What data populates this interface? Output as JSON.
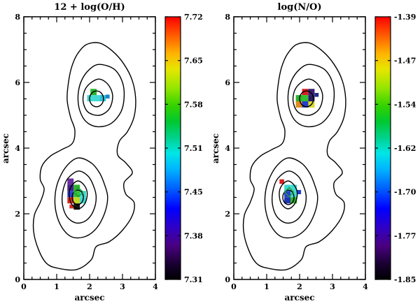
{
  "chart_data": {
    "type": "heatmap",
    "description": "Two-panel spaxel abundance maps with isophotal contours and rainbow colorbars",
    "panels": [
      {
        "title": "12 + log(O/H)",
        "xlabel": "arcsec",
        "ylabel": "arcsec",
        "xlim": [
          0,
          4
        ],
        "ylim": [
          0,
          8
        ],
        "xticks": [
          "0",
          "1",
          "2",
          "3",
          "4"
        ],
        "yticks": [
          "0",
          "2",
          "4",
          "6",
          "8"
        ],
        "colorbar_range": [
          7.31,
          7.72
        ],
        "colorbar_ticks": [
          "7.72",
          "7.65",
          "7.58",
          "7.51",
          "7.45",
          "7.38",
          "7.31"
        ],
        "pixels": [
          {
            "x": 2.12,
            "y": 5.71,
            "color": "#2bb32b"
          },
          {
            "x": 2.02,
            "y": 5.52,
            "color": "#3fd9cf"
          },
          {
            "x": 2.21,
            "y": 5.52,
            "color": "#3fd9cf"
          },
          {
            "x": 2.4,
            "y": 5.52,
            "color": "#2fc0d9"
          },
          {
            "x": 2.55,
            "y": 5.57,
            "color": "#1f86c8",
            "w": 0.12,
            "h": 0.12
          },
          {
            "x": 1.42,
            "y": 2.98,
            "color": "#6a2fa0"
          },
          {
            "x": 1.42,
            "y": 2.79,
            "color": "#45208a"
          },
          {
            "x": 1.61,
            "y": 2.79,
            "color": "#2bb32b"
          },
          {
            "x": 1.42,
            "y": 2.6,
            "color": "#2f3fd0"
          },
          {
            "x": 1.61,
            "y": 2.6,
            "color": "#33bf33"
          },
          {
            "x": 1.8,
            "y": 2.6,
            "color": "#3fd9cf"
          },
          {
            "x": 1.42,
            "y": 2.41,
            "color": "#d92b20"
          },
          {
            "x": 1.61,
            "y": 2.41,
            "color": "#bfd926"
          },
          {
            "x": 1.8,
            "y": 2.41,
            "color": "#3fd9cf"
          },
          {
            "x": 1.61,
            "y": 2.22,
            "color": "#141414"
          },
          {
            "x": 1.45,
            "y": 2.22,
            "color": "#d92b20",
            "w": 0.12,
            "h": 0.12
          }
        ],
        "overlays": [
          {
            "type": "ellipse",
            "x": 2.21,
            "y": 5.5,
            "rx": 0.21,
            "ry": 0.24,
            "color": "#000000"
          },
          {
            "type": "ellipse",
            "x": 1.64,
            "y": 2.5,
            "rx": 0.17,
            "ry": 0.22,
            "color": "#000000"
          },
          {
            "type": "diamond",
            "x": 1.66,
            "y": 2.66,
            "r": 0.14,
            "color": "#1f9e3a"
          }
        ]
      },
      {
        "title": "log(N/O)",
        "xlabel": "arcsec",
        "ylabel": "arcsec",
        "xlim": [
          0,
          4
        ],
        "ylim": [
          0,
          8
        ],
        "xticks": [
          "0",
          "1",
          "2",
          "3",
          "4"
        ],
        "yticks": [
          "0",
          "2",
          "4",
          "6",
          "8"
        ],
        "colorbar_range": [
          -1.85,
          -1.39
        ],
        "colorbar_ticks": [
          "-1.39",
          "-1.47",
          "-1.54",
          "-1.62",
          "-1.70",
          "-1.77",
          "-1.85"
        ],
        "pixels": [
          {
            "x": 2.17,
            "y": 5.71,
            "color": "#d92020"
          },
          {
            "x": 2.36,
            "y": 5.71,
            "color": "#3a1f73"
          },
          {
            "x": 1.98,
            "y": 5.52,
            "color": "#2bb32b"
          },
          {
            "x": 2.17,
            "y": 5.52,
            "color": "#33bf33"
          },
          {
            "x": 2.36,
            "y": 5.52,
            "color": "#2a1a66"
          },
          {
            "x": 1.98,
            "y": 5.33,
            "color": "#e08a1f"
          },
          {
            "x": 2.17,
            "y": 5.33,
            "color": "#2440cc"
          },
          {
            "x": 2.36,
            "y": 5.33,
            "color": "#d9d926"
          },
          {
            "x": 2.52,
            "y": 5.62,
            "color": "#1f2e86",
            "w": 0.12,
            "h": 0.12
          },
          {
            "x": 1.46,
            "y": 2.98,
            "color": "#d92020",
            "w": 0.14,
            "h": 0.14
          },
          {
            "x": 1.63,
            "y": 2.79,
            "color": "#3fd9cf"
          },
          {
            "x": 1.82,
            "y": 2.79,
            "color": "#3fd9cf"
          },
          {
            "x": 1.63,
            "y": 2.6,
            "color": "#2440cc"
          },
          {
            "x": 1.82,
            "y": 2.6,
            "color": "#3fd9cf"
          },
          {
            "x": 1.63,
            "y": 2.41,
            "color": "#1f33b3"
          },
          {
            "x": 1.82,
            "y": 2.41,
            "color": "#2bb32b"
          },
          {
            "x": 1.98,
            "y": 2.66,
            "color": "#2440cc",
            "w": 0.13,
            "h": 0.13
          }
        ],
        "overlays": [
          {
            "type": "ellipse",
            "x": 2.21,
            "y": 5.5,
            "rx": 0.21,
            "ry": 0.24,
            "color": "#000000"
          },
          {
            "type": "ellipse",
            "x": 1.66,
            "y": 2.5,
            "rx": 0.17,
            "ry": 0.22,
            "color": "#000000"
          },
          {
            "type": "diamond",
            "x": 1.68,
            "y": 2.66,
            "r": 0.14,
            "color": "#1f9e3a"
          }
        ]
      }
    ],
    "colorbar_gradient": [
      [
        "0.00",
        "#000000"
      ],
      [
        "0.06",
        "#1a0033"
      ],
      [
        "0.13",
        "#4b0082"
      ],
      [
        "0.20",
        "#2e00c8"
      ],
      [
        "0.27",
        "#0000ff"
      ],
      [
        "0.35",
        "#0064ff"
      ],
      [
        "0.42",
        "#00b4ff"
      ],
      [
        "0.48",
        "#00e6e6"
      ],
      [
        "0.54",
        "#00d28c"
      ],
      [
        "0.60",
        "#00c832"
      ],
      [
        "0.66",
        "#32d200"
      ],
      [
        "0.73",
        "#96e600"
      ],
      [
        "0.80",
        "#e6e600"
      ],
      [
        "0.86",
        "#ffb400"
      ],
      [
        "0.93",
        "#ff5a00"
      ],
      [
        "1.00",
        "#ff0000"
      ]
    ],
    "contours": [
      [
        [
          1.0,
          0.35
        ],
        [
          1.6,
          0.3
        ],
        [
          2.05,
          0.6
        ],
        [
          2.2,
          1.0
        ],
        [
          2.6,
          1.15
        ],
        [
          3.0,
          1.5
        ],
        [
          3.3,
          1.95
        ],
        [
          3.35,
          2.35
        ],
        [
          3.1,
          2.6
        ],
        [
          3.05,
          2.95
        ],
        [
          3.3,
          3.25
        ],
        [
          3.1,
          3.55
        ],
        [
          2.85,
          3.8
        ],
        [
          2.9,
          4.2
        ],
        [
          3.15,
          4.5
        ],
        [
          3.35,
          4.95
        ],
        [
          3.4,
          5.5
        ],
        [
          3.3,
          6.05
        ],
        [
          3.05,
          6.55
        ],
        [
          2.7,
          6.95
        ],
        [
          2.3,
          7.2
        ],
        [
          1.9,
          7.15
        ],
        [
          1.62,
          6.85
        ],
        [
          1.45,
          6.45
        ],
        [
          1.35,
          5.95
        ],
        [
          1.32,
          5.45
        ],
        [
          1.42,
          4.95
        ],
        [
          1.55,
          4.55
        ],
        [
          1.48,
          4.15
        ],
        [
          1.15,
          3.95
        ],
        [
          0.8,
          3.75
        ],
        [
          0.55,
          3.45
        ],
        [
          0.5,
          3.05
        ],
        [
          0.62,
          2.75
        ],
        [
          0.5,
          2.35
        ],
        [
          0.32,
          1.95
        ],
        [
          0.3,
          1.45
        ],
        [
          0.45,
          0.9
        ],
        [
          0.68,
          0.5
        ]
      ],
      [
        [
          2.3,
          6.55
        ],
        [
          2.75,
          6.4
        ],
        [
          3.0,
          6.0
        ],
        [
          3.05,
          5.55
        ],
        [
          2.95,
          5.1
        ],
        [
          2.65,
          4.75
        ],
        [
          2.25,
          4.65
        ],
        [
          1.9,
          4.8
        ],
        [
          1.7,
          5.15
        ],
        [
          1.65,
          5.6
        ],
        [
          1.75,
          6.05
        ],
        [
          2.0,
          6.4
        ]
      ],
      [
        [
          2.25,
          6.1
        ],
        [
          2.55,
          5.95
        ],
        [
          2.7,
          5.6
        ],
        [
          2.6,
          5.2
        ],
        [
          2.3,
          5.0
        ],
        [
          1.95,
          5.1
        ],
        [
          1.8,
          5.45
        ],
        [
          1.9,
          5.85
        ]
      ],
      [
        [
          1.65,
          3.7
        ],
        [
          2.05,
          3.55
        ],
        [
          2.3,
          3.25
        ],
        [
          2.45,
          2.9
        ],
        [
          2.55,
          2.5
        ],
        [
          2.45,
          2.0
        ],
        [
          2.2,
          1.55
        ],
        [
          1.85,
          1.3
        ],
        [
          1.45,
          1.3
        ],
        [
          1.15,
          1.6
        ],
        [
          0.98,
          2.05
        ],
        [
          0.95,
          2.55
        ],
        [
          1.05,
          3.0
        ],
        [
          1.3,
          3.45
        ]
      ],
      [
        [
          1.65,
          3.3
        ],
        [
          1.95,
          3.15
        ],
        [
          2.12,
          2.85
        ],
        [
          2.2,
          2.5
        ],
        [
          2.12,
          2.1
        ],
        [
          1.9,
          1.8
        ],
        [
          1.6,
          1.72
        ],
        [
          1.32,
          1.9
        ],
        [
          1.18,
          2.25
        ],
        [
          1.18,
          2.65
        ],
        [
          1.32,
          3.05
        ]
      ],
      [
        [
          1.65,
          3.0
        ],
        [
          1.85,
          2.85
        ],
        [
          1.93,
          2.6
        ],
        [
          1.85,
          2.3
        ],
        [
          1.65,
          2.15
        ],
        [
          1.45,
          2.3
        ],
        [
          1.38,
          2.6
        ],
        [
          1.45,
          2.85
        ]
      ]
    ]
  }
}
